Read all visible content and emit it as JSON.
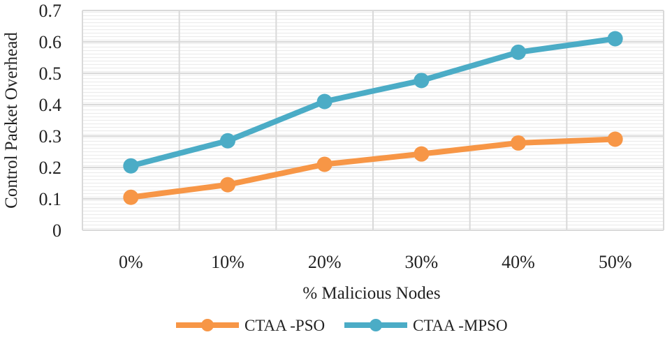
{
  "chart_data": {
    "type": "line",
    "title": "",
    "xlabel": "% Malicious Nodes",
    "ylabel": "Control Packet Overhead",
    "categories": [
      "0%",
      "10%",
      "20%",
      "30%",
      "40%",
      "50%"
    ],
    "yticks": [
      "0",
      "0.1",
      "0.2",
      "0.3",
      "0.4",
      "0.5",
      "0.6",
      "0.7"
    ],
    "ylim": [
      0,
      0.7
    ],
    "grid": true,
    "legend_position": "bottom",
    "series": [
      {
        "name": "CTAA -PSO",
        "color": "#f79646",
        "values": [
          0.105,
          0.145,
          0.21,
          0.243,
          0.278,
          0.29
        ]
      },
      {
        "name": "CTAA -MPSO",
        "color": "#4bacc6",
        "values": [
          0.205,
          0.285,
          0.41,
          0.477,
          0.567,
          0.61
        ]
      }
    ]
  }
}
